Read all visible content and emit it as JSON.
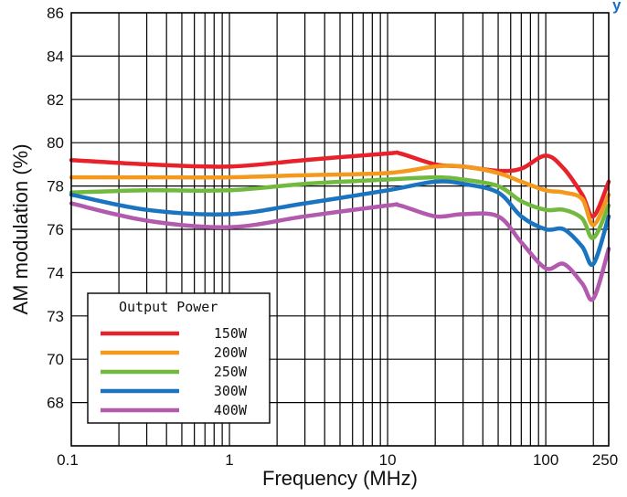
{
  "chart_data": {
    "type": "line",
    "title_fragment": "y",
    "xlabel": "Frequency (MHz)",
    "ylabel": "AM modulation  (%)",
    "x_scale": "log",
    "xlim": [
      0.1,
      250
    ],
    "x_tick_values": [
      0.1,
      1,
      10,
      100,
      250
    ],
    "x_tick_labels": [
      "0.1",
      "1",
      "10",
      "100",
      "250"
    ],
    "y_tick_labels": [
      "86",
      "84",
      "82",
      "80",
      "78",
      "76",
      "74",
      "73",
      "70",
      "68"
    ],
    "grid": true,
    "legend": {
      "title": "Output Power",
      "placement": "bottom-left"
    },
    "series": [
      {
        "name": "150W",
        "color": "#e8222a",
        "x": [
          0.1,
          0.3,
          1,
          3,
          10,
          12,
          20,
          30,
          50,
          70,
          100,
          130,
          170,
          200,
          250
        ],
        "y": [
          79.2,
          79.0,
          78.9,
          79.2,
          79.5,
          79.5,
          79.0,
          78.9,
          78.7,
          78.8,
          79.4,
          78.8,
          77.6,
          76.6,
          78.2
        ]
      },
      {
        "name": "200W",
        "color": "#f39a1e",
        "x": [
          0.1,
          0.3,
          1,
          3,
          10,
          20,
          30,
          50,
          70,
          100,
          130,
          170,
          200,
          250
        ],
        "y": [
          78.4,
          78.4,
          78.4,
          78.5,
          78.6,
          78.9,
          78.9,
          78.6,
          78.2,
          77.8,
          77.7,
          77.4,
          76.2,
          77.6
        ]
      },
      {
        "name": "250W",
        "color": "#72b93f",
        "x": [
          0.1,
          0.3,
          1,
          3,
          10,
          20,
          30,
          50,
          70,
          100,
          130,
          170,
          200,
          250
        ],
        "y": [
          77.7,
          77.8,
          77.8,
          78.1,
          78.3,
          78.4,
          78.3,
          78.0,
          77.3,
          76.9,
          76.9,
          76.5,
          75.6,
          77.1
        ]
      },
      {
        "name": "300W",
        "color": "#1a74bf",
        "x": [
          0.1,
          0.3,
          1,
          3,
          10,
          20,
          30,
          50,
          70,
          100,
          130,
          170,
          200,
          250
        ],
        "y": [
          77.6,
          76.9,
          76.7,
          77.2,
          77.8,
          78.2,
          78.1,
          77.7,
          76.6,
          76.0,
          76.0,
          75.2,
          74.4,
          76.6
        ]
      },
      {
        "name": "400W",
        "color": "#b25aad",
        "x": [
          0.1,
          0.3,
          1,
          3,
          10,
          12,
          20,
          30,
          50,
          70,
          100,
          130,
          170,
          200,
          250
        ],
        "y": [
          77.2,
          76.4,
          76.1,
          76.6,
          77.1,
          77.1,
          76.6,
          76.7,
          76.6,
          75.4,
          74.2,
          74.4,
          73.5,
          72.8,
          75.1
        ]
      }
    ]
  }
}
